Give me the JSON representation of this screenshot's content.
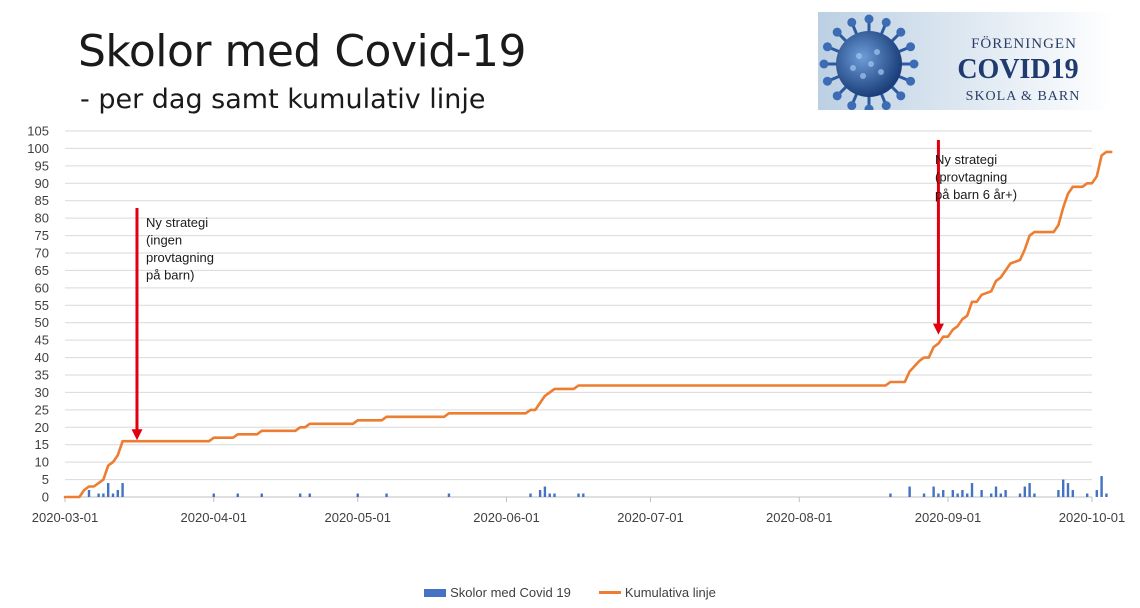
{
  "title": "Skolor med Covid-19",
  "subtitle": "- per dag samt kumulativ linje",
  "logo": {
    "line1": "FÖRENINGEN",
    "line2": "COVID19",
    "line3": "SKOLA & BARN",
    "icon": "virus-icon"
  },
  "colors": {
    "bar": "#4472c4",
    "line": "#ed7d31",
    "arrow": "#e0000f",
    "grid": "#d9d9d9"
  },
  "annotations": {
    "first": [
      "Ny strategi",
      "(ingen",
      "provtagning",
      "på barn)"
    ],
    "second": [
      "Ny strategi",
      "(provtagning",
      "på barn 6 år+)"
    ]
  },
  "chart_data": {
    "type": "bar+line",
    "x_start": "2020-03-01",
    "x_end": "2020-10-01",
    "ylim": [
      0,
      105
    ],
    "y_ticks": [
      0,
      5,
      10,
      15,
      20,
      25,
      30,
      35,
      40,
      45,
      50,
      55,
      60,
      65,
      70,
      75,
      80,
      85,
      90,
      95,
      100,
      105
    ],
    "x_ticks": [
      "2020-03-01",
      "2020-04-01",
      "2020-05-01",
      "2020-06-01",
      "2020-07-01",
      "2020-08-01",
      "2020-09-01",
      "2020-10-01"
    ],
    "grid": true,
    "legend_position": "bottom",
    "series": [
      {
        "name": "Skolor med Covid 19",
        "type": "bar",
        "points": [
          [
            "2020-03-06",
            2
          ],
          [
            "2020-03-08",
            1
          ],
          [
            "2020-03-09",
            1
          ],
          [
            "2020-03-10",
            4
          ],
          [
            "2020-03-11",
            1
          ],
          [
            "2020-03-12",
            2
          ],
          [
            "2020-03-13",
            4
          ],
          [
            "2020-04-01",
            1
          ],
          [
            "2020-04-06",
            1
          ],
          [
            "2020-04-11",
            1
          ],
          [
            "2020-04-19",
            1
          ],
          [
            "2020-04-21",
            1
          ],
          [
            "2020-05-01",
            1
          ],
          [
            "2020-05-07",
            1
          ],
          [
            "2020-05-20",
            1
          ],
          [
            "2020-06-06",
            1
          ],
          [
            "2020-06-08",
            2
          ],
          [
            "2020-06-09",
            3
          ],
          [
            "2020-06-10",
            1
          ],
          [
            "2020-06-11",
            1
          ],
          [
            "2020-06-16",
            1
          ],
          [
            "2020-06-17",
            1
          ],
          [
            "2020-08-20",
            1
          ],
          [
            "2020-08-24",
            3
          ],
          [
            "2020-08-27",
            1
          ],
          [
            "2020-08-29",
            3
          ],
          [
            "2020-08-30",
            1
          ],
          [
            "2020-08-31",
            2
          ],
          [
            "2020-09-02",
            2
          ],
          [
            "2020-09-03",
            1
          ],
          [
            "2020-09-04",
            2
          ],
          [
            "2020-09-05",
            1
          ],
          [
            "2020-09-06",
            4
          ],
          [
            "2020-09-08",
            2
          ],
          [
            "2020-09-10",
            1
          ],
          [
            "2020-09-11",
            3
          ],
          [
            "2020-09-12",
            1
          ],
          [
            "2020-09-13",
            2
          ],
          [
            "2020-09-16",
            1
          ],
          [
            "2020-09-17",
            3
          ],
          [
            "2020-09-18",
            4
          ],
          [
            "2020-09-19",
            1
          ],
          [
            "2020-09-24",
            2
          ],
          [
            "2020-09-25",
            5
          ],
          [
            "2020-09-26",
            4
          ],
          [
            "2020-09-27",
            2
          ],
          [
            "2020-09-30",
            1
          ],
          [
            "2020-10-02",
            2
          ],
          [
            "2020-10-03",
            6
          ],
          [
            "2020-10-04",
            1
          ]
        ]
      },
      {
        "name": "Kumulativa linje",
        "type": "line",
        "points": [
          [
            "2020-03-01",
            0
          ],
          [
            "2020-03-04",
            0
          ],
          [
            "2020-03-05",
            2
          ],
          [
            "2020-03-06",
            3
          ],
          [
            "2020-03-07",
            3
          ],
          [
            "2020-03-08",
            4
          ],
          [
            "2020-03-09",
            5
          ],
          [
            "2020-03-10",
            9
          ],
          [
            "2020-03-11",
            10
          ],
          [
            "2020-03-12",
            12
          ],
          [
            "2020-03-13",
            16
          ],
          [
            "2020-03-31",
            16
          ],
          [
            "2020-04-01",
            17
          ],
          [
            "2020-04-05",
            17
          ],
          [
            "2020-04-06",
            18
          ],
          [
            "2020-04-10",
            18
          ],
          [
            "2020-04-11",
            19
          ],
          [
            "2020-04-18",
            19
          ],
          [
            "2020-04-19",
            20
          ],
          [
            "2020-04-20",
            20
          ],
          [
            "2020-04-21",
            21
          ],
          [
            "2020-04-30",
            21
          ],
          [
            "2020-05-01",
            22
          ],
          [
            "2020-05-06",
            22
          ],
          [
            "2020-05-07",
            23
          ],
          [
            "2020-05-19",
            23
          ],
          [
            "2020-05-20",
            24
          ],
          [
            "2020-06-05",
            24
          ],
          [
            "2020-06-06",
            25
          ],
          [
            "2020-06-07",
            25
          ],
          [
            "2020-06-08",
            27
          ],
          [
            "2020-06-09",
            29
          ],
          [
            "2020-06-10",
            30
          ],
          [
            "2020-06-11",
            31
          ],
          [
            "2020-06-15",
            31
          ],
          [
            "2020-06-16",
            32
          ],
          [
            "2020-06-17",
            32
          ],
          [
            "2020-08-19",
            32
          ],
          [
            "2020-08-20",
            33
          ],
          [
            "2020-08-23",
            33
          ],
          [
            "2020-08-24",
            36
          ],
          [
            "2020-08-26",
            39
          ],
          [
            "2020-08-27",
            40
          ],
          [
            "2020-08-28",
            40
          ],
          [
            "2020-08-29",
            43
          ],
          [
            "2020-08-30",
            44
          ],
          [
            "2020-08-31",
            46
          ],
          [
            "2020-09-01",
            46
          ],
          [
            "2020-09-02",
            48
          ],
          [
            "2020-09-03",
            49
          ],
          [
            "2020-09-04",
            51
          ],
          [
            "2020-09-05",
            52
          ],
          [
            "2020-09-06",
            56
          ],
          [
            "2020-09-07",
            56
          ],
          [
            "2020-09-08",
            58
          ],
          [
            "2020-09-10",
            59
          ],
          [
            "2020-09-11",
            62
          ],
          [
            "2020-09-12",
            63
          ],
          [
            "2020-09-13",
            65
          ],
          [
            "2020-09-14",
            67
          ],
          [
            "2020-09-16",
            68
          ],
          [
            "2020-09-17",
            71
          ],
          [
            "2020-09-18",
            75
          ],
          [
            "2020-09-19",
            76
          ],
          [
            "2020-09-23",
            76
          ],
          [
            "2020-09-24",
            78
          ],
          [
            "2020-09-25",
            83
          ],
          [
            "2020-09-26",
            87
          ],
          [
            "2020-09-27",
            89
          ],
          [
            "2020-09-29",
            89
          ],
          [
            "2020-09-30",
            90
          ],
          [
            "2020-10-01",
            90
          ],
          [
            "2020-10-02",
            92
          ],
          [
            "2020-10-03",
            98
          ],
          [
            "2020-10-04",
            99
          ],
          [
            "2020-10-05",
            99
          ]
        ]
      }
    ],
    "annotations": [
      {
        "date": "2020-03-16",
        "y": 16,
        "text": "Ny strategi (ingen provtagning på barn)"
      },
      {
        "date": "2020-08-30",
        "y": 46,
        "text": "Ny strategi (provtagning på barn 6 år+)"
      }
    ]
  }
}
